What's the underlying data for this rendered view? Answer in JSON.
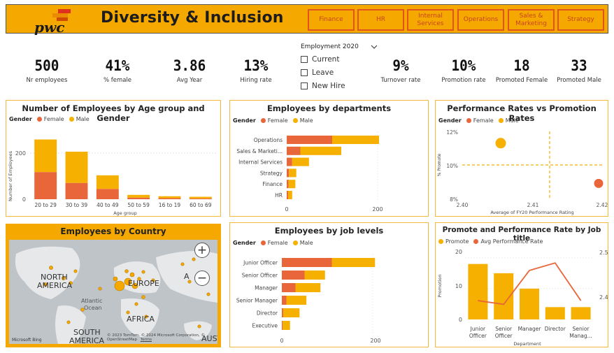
{
  "header": {
    "logo_text": "pwc",
    "title": "Diversity & Inclusion",
    "nav": [
      "Finance",
      "HR",
      "Internal Services",
      "Operations",
      "Sales & Marketing",
      "Strategy"
    ]
  },
  "kpis": [
    {
      "value": "500",
      "label": "Nr employees"
    },
    {
      "value": "41%",
      "label": "% female"
    },
    {
      "value": "3.86",
      "label": "Avg Year"
    },
    {
      "value": "13%",
      "label": "Hiring rate"
    },
    {
      "value": "9%",
      "label": "Turnover rate"
    },
    {
      "value": "10%",
      "label": "Promotion rate"
    },
    {
      "value": "18",
      "label": "Promoted Female"
    },
    {
      "value": "33",
      "label": "Promoted Male"
    }
  ],
  "slicer": {
    "title": "Employment 2020",
    "options": [
      "Current",
      "Leave",
      "New Hire"
    ]
  },
  "colors": {
    "female": "#e8663a",
    "male": "#f5b000",
    "accent": "#f5a800"
  },
  "age_panel": {
    "title": "Number of Employees by Age group and Gender",
    "legend_title": "Gender",
    "legend": [
      "Female",
      "Male"
    ],
    "ylabel": "Number of Employees",
    "xlabel": "Age group",
    "yticks": [
      "0",
      "200"
    ]
  },
  "dept_panel": {
    "title": "Employees by departments",
    "legend_title": "Gender",
    "legend": [
      "Female",
      "Male"
    ],
    "xticks": [
      "0",
      "200"
    ]
  },
  "perf_panel": {
    "title": "Performance Rates vs Promotion Rates",
    "legend_title": "Gender",
    "legend": [
      "Female",
      "Male"
    ],
    "ylabel": "% Promote",
    "xlabel": "Average of FY20 Performance Rating",
    "yticks": [
      "12%",
      "10%",
      "8%"
    ],
    "xticks": [
      "2.40",
      "2.41",
      "2.42"
    ]
  },
  "map_panel": {
    "title": "Employees by Country",
    "labels": [
      "NORTH",
      "AMERICA",
      "EUROPE",
      "A",
      "Atlantic",
      "Ocean",
      "AFRICA",
      "SOUTH",
      "AMERICA",
      "AUST"
    ],
    "attribution": "© 2023 TomTom, © 2024 Microsoft Corporation, © OpenStreetMap",
    "attr_extra": "Terms",
    "bing": "Microsoft Bing",
    "zoom_in": "+",
    "zoom_out": "−"
  },
  "job_panel": {
    "title": "Employees by job levels",
    "legend_title": "Gender",
    "legend": [
      "Female",
      "Male"
    ],
    "xticks": [
      "0",
      "200"
    ]
  },
  "promote_panel": {
    "title": "Promote and Performance Rate by Job title",
    "legend": [
      "Promote",
      "Avg Performance Rate"
    ],
    "ylabel": "Promotion",
    "xlabel": "Department",
    "yticks_left": [
      "20",
      "10",
      "0"
    ],
    "yticks_right": [
      "2.5",
      "2.4"
    ]
  },
  "chart_data": [
    {
      "type": "bar",
      "stacked": true,
      "title": "Number of Employees by Age group and Gender",
      "xlabel": "Age group",
      "ylabel": "Number of Employees",
      "categories": [
        "20 to 29",
        "30 to 39",
        "40 to 49",
        "50 to 59",
        "16 to 19",
        "60 to 69"
      ],
      "series": [
        {
          "name": "Female",
          "values": [
            100,
            60,
            38,
            6,
            4,
            3
          ]
        },
        {
          "name": "Male",
          "values": [
            120,
            115,
            50,
            10,
            7,
            6
          ]
        }
      ],
      "ylim": [
        0,
        260
      ]
    },
    {
      "type": "bar",
      "orientation": "horizontal",
      "stacked": true,
      "title": "Employees by departments",
      "categories": [
        "Operations",
        "Sales & Marketi...",
        "Internal Services",
        "Strategy",
        "Finance",
        "HR"
      ],
      "series": [
        {
          "name": "Female",
          "values": [
            100,
            30,
            12,
            5,
            4,
            3
          ]
        },
        {
          "name": "Male",
          "values": [
            103,
            90,
            37,
            16,
            15,
            9
          ]
        }
      ],
      "xlim": [
        0,
        240
      ]
    },
    {
      "type": "scatter",
      "title": "Performance Rates vs Promotion Rates",
      "xlabel": "Average of FY20 Performance Rating",
      "ylabel": "% Promote",
      "series": [
        {
          "name": "Female",
          "points": [
            [
              2.4195,
              8.9
            ]
          ]
        },
        {
          "name": "Male",
          "points": [
            [
              2.4055,
              11.3
            ]
          ]
        }
      ],
      "xlim": [
        2.4,
        2.42
      ],
      "ylim": [
        8,
        12
      ],
      "reference_lines": {
        "x": 2.4125,
        "y": 10
      }
    },
    {
      "type": "bar",
      "orientation": "horizontal",
      "stacked": true,
      "title": "Employees by job levels",
      "categories": [
        "Junior Officer",
        "Senior Officer",
        "Manager",
        "Senior Manager",
        "Director",
        "Executive"
      ],
      "series": [
        {
          "name": "Female",
          "values": [
            110,
            50,
            30,
            10,
            3,
            2
          ]
        },
        {
          "name": "Male",
          "values": [
            95,
            45,
            55,
            44,
            36,
            16
          ]
        }
      ],
      "xlim": [
        0,
        240
      ]
    },
    {
      "type": "bar+line",
      "title": "Promote and Performance Rate by Job title",
      "xlabel": "Department",
      "ylabel": "Promotion",
      "categories": [
        "Junior Officer",
        "Senior Officer",
        "Manager",
        "Director",
        "Senior Manag..."
      ],
      "series": [
        {
          "name": "Promote",
          "type": "bar",
          "values": [
            18,
            15,
            10,
            4,
            4
          ]
        },
        {
          "name": "Avg Performance Rate",
          "type": "line",
          "axis": "right",
          "values": [
            2.39,
            2.38,
            2.47,
            2.49,
            2.39
          ]
        }
      ],
      "ylim": [
        0,
        22
      ],
      "y2lim": [
        2.34,
        2.52
      ]
    }
  ]
}
